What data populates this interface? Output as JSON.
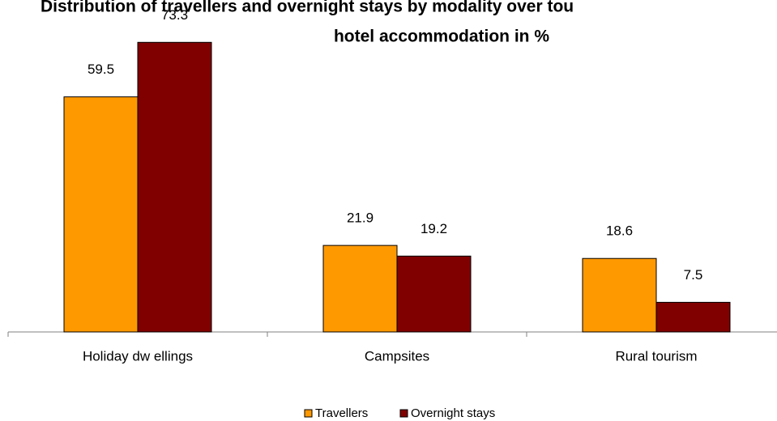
{
  "chart_data": {
    "type": "bar",
    "title": [
      "Distribution of travellers and overnight stays by modality over tou",
      "hotel accommodation in %"
    ],
    "categories": [
      "Holiday dw ellings",
      "Campsites",
      "Rural tourism"
    ],
    "series": [
      {
        "name": "Travellers",
        "color": "#ff9900",
        "values": [
          59.5,
          21.9,
          18.6
        ]
      },
      {
        "name": "Overnight stays",
        "color": "#800000",
        "values": [
          73.3,
          19.2,
          7.5
        ]
      }
    ],
    "ylim": [
      0,
      75
    ],
    "legend": "bottom"
  }
}
